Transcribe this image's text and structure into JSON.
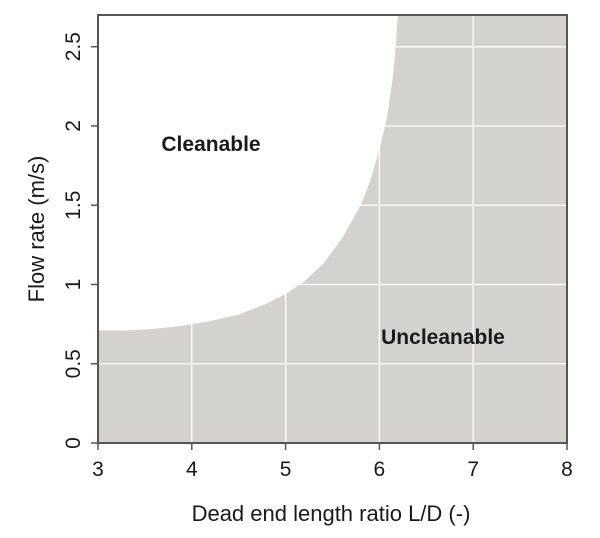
{
  "chart_data": {
    "type": "area",
    "title": "",
    "xlabel": "Dead end length ratio L/D (-)",
    "ylabel": "Flow rate (m/s)",
    "xlim": [
      3,
      8
    ],
    "ylim": [
      0,
      2.7
    ],
    "x_ticks": [
      3,
      4,
      5,
      6,
      7,
      8
    ],
    "x_tick_labels": [
      "3",
      "4",
      "5",
      "6",
      "7",
      "8"
    ],
    "y_ticks": [
      0,
      0.5,
      1,
      1.5,
      2,
      2.5
    ],
    "y_tick_labels": [
      "0",
      "0.5",
      "1",
      "1.5",
      "2",
      "2.5"
    ],
    "grid": true,
    "boundary": {
      "x": [
        3.0,
        3.3,
        3.6,
        3.9,
        4.2,
        4.5,
        4.8,
        5.0,
        5.2,
        5.4,
        5.6,
        5.8,
        5.9,
        6.0,
        6.08,
        6.13,
        6.16,
        6.18,
        6.19,
        6.2
      ],
      "y": [
        0.71,
        0.71,
        0.72,
        0.74,
        0.77,
        0.81,
        0.88,
        0.94,
        1.02,
        1.13,
        1.29,
        1.5,
        1.65,
        1.85,
        2.05,
        2.25,
        2.4,
        2.55,
        2.65,
        2.7
      ]
    },
    "regions": [
      {
        "label": "Cleanable",
        "position": "upper-left",
        "color": "#ffffff"
      },
      {
        "label": "Uncleanable",
        "position": "lower-right",
        "color": "#d4d2cf"
      }
    ],
    "colors": {
      "uncleanable_fill": "#d4d2cf",
      "cleanable_fill": "#ffffff",
      "grid": "#ffffff",
      "frame": "#555555"
    }
  }
}
